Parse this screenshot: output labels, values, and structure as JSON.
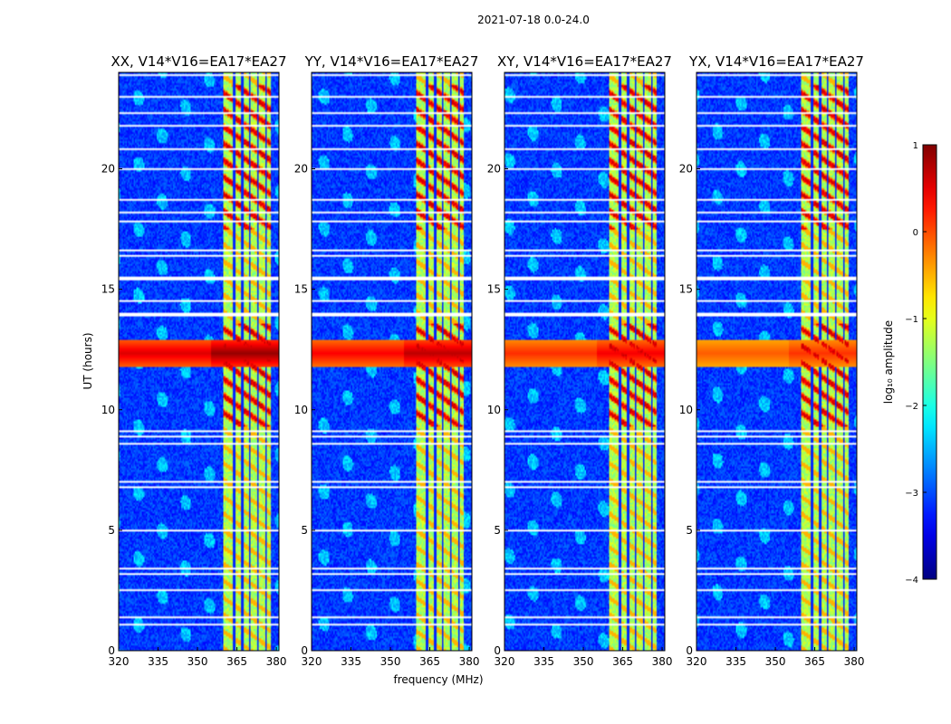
{
  "chart_data": {
    "type": "heatmap",
    "suptitle": "2021-07-18 0.0-24.0",
    "xlabel": "frequency (MHz)",
    "ylabel": "UT (hours)",
    "xlim": [
      320,
      381
    ],
    "ylim": [
      0,
      24
    ],
    "xticks": [
      320,
      335,
      350,
      365,
      380
    ],
    "yticks": [
      0,
      5,
      10,
      15,
      20
    ],
    "panels": [
      {
        "title": "XX, V14*V16=EA17*EA27",
        "pol": "XX",
        "flare_strength": 1.0
      },
      {
        "title": "YY, V14*V16=EA17*EA27",
        "pol": "YY",
        "flare_strength": 0.9
      },
      {
        "title": "XY, V14*V16=EA17*EA27",
        "pol": "XY",
        "flare_strength": 0.75
      },
      {
        "title": "YX, V14*V16=EA17*EA27",
        "pol": "YX",
        "flare_strength": 0.6
      }
    ],
    "rfi_band_mhz": [
      360,
      378
    ],
    "rfi_channel_edges_mhz": [
      364,
      367,
      370,
      373,
      376
    ],
    "strong_event_ut_hours": [
      11.8,
      12.9
    ],
    "flagged_ut_hours": [
      0.3,
      1.1,
      1.4,
      2.1,
      2.5,
      3.2,
      3.4,
      3.6,
      4.8,
      5.0,
      6.8,
      7.0,
      8.4,
      8.6,
      8.9,
      9.1,
      13.9,
      14.0,
      14.4,
      14.5,
      15.4,
      15.5,
      15.9,
      16.4,
      16.6,
      16.8,
      17.8,
      18.0,
      18.2,
      18.7,
      19.8,
      20.0,
      20.8,
      21.0,
      21.8,
      22.3,
      23.0,
      23.9
    ],
    "colorbar": {
      "label": "log₁₀ amplitude",
      "range": [
        -4,
        1
      ],
      "ticks": [
        "1",
        "0",
        "−1",
        "−2",
        "−3",
        "−4"
      ],
      "colormap": "jet"
    }
  }
}
